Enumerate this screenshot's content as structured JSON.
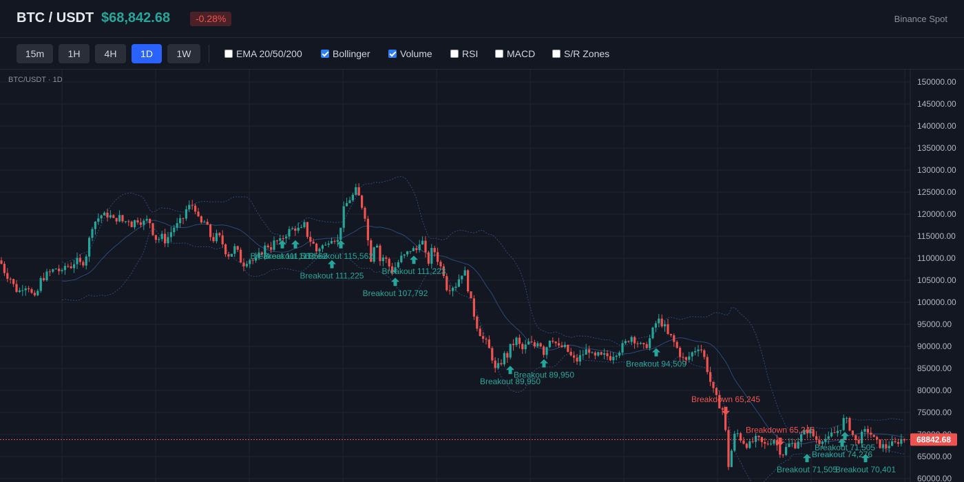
{
  "header": {
    "pair": "BTC / USDT",
    "price": "$68,842.68",
    "change": "-0.28%",
    "exchange": "Binance Spot"
  },
  "toolbar": {
    "timeframes": [
      {
        "label": "15m",
        "active": false
      },
      {
        "label": "1H",
        "active": false
      },
      {
        "label": "4H",
        "active": false
      },
      {
        "label": "1D",
        "active": true
      },
      {
        "label": "1W",
        "active": false
      }
    ],
    "indicators": [
      {
        "label": "EMA 20/50/200",
        "checked": false
      },
      {
        "label": "Bollinger",
        "checked": true
      },
      {
        "label": "Volume",
        "checked": true
      },
      {
        "label": "RSI",
        "checked": false
      },
      {
        "label": "MACD",
        "checked": false
      },
      {
        "label": "S/R Zones",
        "checked": false
      }
    ]
  },
  "chart_symbol_label": "BTC/USDT · 1D",
  "colors": {
    "up": "#26a69a",
    "down": "#ef5350",
    "background": "#131722",
    "grid": "#1f2430",
    "bollinger": "#2a4a7a",
    "last_price_line": "#ef5350"
  },
  "chart_data": {
    "type": "candlestick",
    "title": "",
    "xlabel": "",
    "ylabel": "",
    "ylim": [
      60000,
      151000
    ],
    "y_ticks": [
      "150000.00",
      "145000.00",
      "140000.00",
      "135000.00",
      "130000.00",
      "125000.00",
      "120000.00",
      "115000.00",
      "110000.00",
      "105000.00",
      "100000.00",
      "95000.00",
      "90000.00",
      "85000.00",
      "80000.00",
      "75000.00",
      "70000.00",
      "65000.00",
      "60000.00"
    ],
    "last_price": "68842.68",
    "indicators_shown": [
      "Bollinger Bands"
    ],
    "grid": true,
    "price_path": [
      [
        0,
        109500
      ],
      [
        8,
        106500
      ],
      [
        15,
        105500
      ],
      [
        22,
        103000
      ],
      [
        28,
        102500
      ],
      [
        35,
        104000
      ],
      [
        42,
        103500
      ],
      [
        48,
        101000
      ],
      [
        52,
        100500
      ],
      [
        58,
        104800
      ],
      [
        65,
        106000
      ],
      [
        75,
        107000
      ],
      [
        82,
        107800
      ],
      [
        90,
        106500
      ],
      [
        95,
        108500
      ],
      [
        102,
        108000
      ],
      [
        110,
        109500
      ],
      [
        118,
        108500
      ],
      [
        124,
        110000
      ],
      [
        128,
        113000
      ],
      [
        132,
        116000
      ],
      [
        136,
        119000
      ],
      [
        140,
        118000
      ],
      [
        145,
        120000
      ],
      [
        150,
        119500
      ],
      [
        158,
        120000
      ],
      [
        165,
        118500
      ],
      [
        172,
        119500
      ],
      [
        180,
        118000
      ],
      [
        186,
        119000
      ],
      [
        192,
        117500
      ],
      [
        198,
        119000
      ],
      [
        204,
        118500
      ],
      [
        210,
        118000
      ],
      [
        216,
        119000
      ],
      [
        222,
        116000
      ],
      [
        228,
        114000
      ],
      [
        234,
        115000
      ],
      [
        240,
        114000
      ],
      [
        245,
        115000
      ],
      [
        252,
        117000
      ],
      [
        258,
        117500
      ],
      [
        263,
        118500
      ],
      [
        268,
        119500
      ],
      [
        272,
        122000
      ],
      [
        276,
        121500
      ],
      [
        282,
        122500
      ],
      [
        287,
        119000
      ],
      [
        291,
        117500
      ],
      [
        296,
        118500
      ],
      [
        302,
        116500
      ],
      [
        308,
        114000
      ],
      [
        314,
        115000
      ],
      [
        320,
        114500
      ],
      [
        328,
        111500
      ],
      [
        334,
        110500
      ],
      [
        340,
        112500
      ],
      [
        346,
        111000
      ],
      [
        352,
        108500
      ],
      [
        358,
        109500
      ],
      [
        364,
        110000
      ],
      [
        370,
        109000
      ],
      [
        376,
        110500
      ],
      [
        382,
        112000
      ],
      [
        388,
        113000
      ],
      [
        394,
        112500
      ],
      [
        400,
        114000
      ],
      [
        406,
        113500
      ],
      [
        412,
        115000
      ],
      [
        418,
        116000
      ],
      [
        424,
        116500
      ],
      [
        430,
        117000
      ],
      [
        436,
        116000
      ],
      [
        442,
        117500
      ],
      [
        448,
        114500
      ],
      [
        454,
        113500
      ],
      [
        460,
        111500
      ],
      [
        466,
        113000
      ],
      [
        472,
        112500
      ],
      [
        478,
        114500
      ],
      [
        484,
        115000
      ],
      [
        490,
        113500
      ],
      [
        496,
        118500
      ],
      [
        500,
        121500
      ],
      [
        504,
        122500
      ],
      [
        508,
        123500
      ],
      [
        512,
        124000
      ],
      [
        516,
        125500
      ],
      [
        520,
        124500
      ],
      [
        524,
        122500
      ],
      [
        528,
        121000
      ],
      [
        532,
        118500
      ],
      [
        536,
        111000
      ],
      [
        540,
        109500
      ],
      [
        544,
        114000
      ],
      [
        548,
        113500
      ],
      [
        552,
        109500
      ],
      [
        558,
        110500
      ],
      [
        564,
        108500
      ],
      [
        570,
        107000
      ],
      [
        576,
        108500
      ],
      [
        582,
        110000
      ],
      [
        588,
        110500
      ],
      [
        594,
        111500
      ],
      [
        598,
        112500
      ],
      [
        602,
        111500
      ],
      [
        606,
        112000
      ],
      [
        610,
        114500
      ],
      [
        614,
        113500
      ],
      [
        618,
        110500
      ],
      [
        622,
        109000
      ],
      [
        626,
        111500
      ],
      [
        630,
        112000
      ],
      [
        635,
        110000
      ],
      [
        640,
        108000
      ],
      [
        645,
        106500
      ],
      [
        650,
        102500
      ],
      [
        655,
        104000
      ],
      [
        660,
        103500
      ],
      [
        664,
        104500
      ],
      [
        668,
        106000
      ],
      [
        672,
        107000
      ],
      [
        676,
        106500
      ],
      [
        680,
        103000
      ],
      [
        684,
        100000
      ],
      [
        688,
        97500
      ],
      [
        692,
        95000
      ],
      [
        696,
        93500
      ],
      [
        700,
        92000
      ],
      [
        704,
        91000
      ],
      [
        708,
        90500
      ],
      [
        712,
        88500
      ],
      [
        716,
        87000
      ],
      [
        720,
        84000
      ],
      [
        724,
        85500
      ],
      [
        728,
        86500
      ],
      [
        732,
        88000
      ],
      [
        736,
        87500
      ],
      [
        740,
        89500
      ],
      [
        745,
        90500
      ],
      [
        750,
        91500
      ],
      [
        755,
        90000
      ],
      [
        760,
        89000
      ],
      [
        765,
        90500
      ],
      [
        770,
        91000
      ],
      [
        775,
        89500
      ],
      [
        780,
        91500
      ],
      [
        785,
        90500
      ],
      [
        790,
        88500
      ],
      [
        795,
        90500
      ],
      [
        800,
        92500
      ],
      [
        806,
        91000
      ],
      [
        812,
        89500
      ],
      [
        818,
        90000
      ],
      [
        824,
        89000
      ],
      [
        830,
        87500
      ],
      [
        836,
        86500
      ],
      [
        842,
        87500
      ],
      [
        848,
        88500
      ],
      [
        855,
        89500
      ],
      [
        862,
        87000
      ],
      [
        868,
        88000
      ],
      [
        874,
        87500
      ],
      [
        880,
        88000
      ],
      [
        886,
        87500
      ],
      [
        892,
        88500
      ],
      [
        898,
        89000
      ],
      [
        904,
        90000
      ],
      [
        910,
        91000
      ],
      [
        916,
        92500
      ],
      [
        922,
        91500
      ],
      [
        928,
        90500
      ],
      [
        934,
        89500
      ],
      [
        940,
        90500
      ],
      [
        946,
        92500
      ],
      [
        950,
        94500
      ],
      [
        955,
        96000
      ],
      [
        960,
        95500
      ],
      [
        965,
        94500
      ],
      [
        970,
        92500
      ],
      [
        975,
        92000
      ],
      [
        980,
        90500
      ],
      [
        985,
        89000
      ],
      [
        990,
        87500
      ],
      [
        996,
        86500
      ],
      [
        1002,
        88000
      ],
      [
        1008,
        89000
      ],
      [
        1014,
        90000
      ],
      [
        1020,
        89000
      ],
      [
        1026,
        85500
      ],
      [
        1030,
        83000
      ],
      [
        1034,
        80500
      ],
      [
        1038,
        79000
      ],
      [
        1042,
        77500
      ],
      [
        1046,
        76500
      ],
      [
        1050,
        75500
      ],
      [
        1054,
        70000
      ],
      [
        1058,
        63000
      ],
      [
        1062,
        66000
      ],
      [
        1066,
        69500
      ],
      [
        1070,
        70500
      ],
      [
        1076,
        69000
      ],
      [
        1082,
        68000
      ],
      [
        1088,
        67500
      ],
      [
        1094,
        68500
      ],
      [
        1100,
        69000
      ],
      [
        1106,
        68000
      ],
      [
        1112,
        67500
      ],
      [
        1118,
        68500
      ],
      [
        1124,
        69000
      ],
      [
        1130,
        67000
      ],
      [
        1136,
        65500
      ],
      [
        1142,
        67000
      ],
      [
        1148,
        68000
      ],
      [
        1154,
        67500
      ],
      [
        1160,
        69000
      ],
      [
        1166,
        70000
      ],
      [
        1172,
        71000
      ],
      [
        1178,
        70500
      ],
      [
        1184,
        69000
      ],
      [
        1190,
        68500
      ],
      [
        1196,
        69500
      ],
      [
        1202,
        68500
      ],
      [
        1208,
        70000
      ],
      [
        1214,
        70500
      ],
      [
        1220,
        71500
      ],
      [
        1226,
        73500
      ],
      [
        1232,
        72500
      ],
      [
        1238,
        70000
      ],
      [
        1244,
        68000
      ],
      [
        1250,
        69500
      ],
      [
        1256,
        70500
      ],
      [
        1262,
        71000
      ],
      [
        1268,
        69000
      ],
      [
        1274,
        68000
      ],
      [
        1280,
        67500
      ],
      [
        1286,
        67000
      ],
      [
        1292,
        68000
      ],
      [
        1298,
        67500
      ],
      [
        1304,
        68500
      ],
      [
        1310,
        69000
      ],
      [
        1316,
        68842
      ]
    ],
    "signals": [
      {
        "label": "Breakout 111,562",
        "dir": "up",
        "x": 410,
        "price": 113000
      },
      {
        "label": "Breakout 111,562",
        "dir": "up",
        "x": 429,
        "price": 113000
      },
      {
        "label": "Breakout 115,562",
        "dir": "up",
        "x": 495,
        "price": 113000
      },
      {
        "label": "Breakout 111,225",
        "dir": "up",
        "x": 482,
        "price": 108500
      },
      {
        "label": "Breakout 111,223",
        "dir": "up",
        "x": 601,
        "price": 109500
      },
      {
        "label": "Breakout 107,792",
        "dir": "up",
        "x": 574,
        "price": 104500
      },
      {
        "label": "Breakout 89,950",
        "dir": "up",
        "x": 741,
        "price": 84500
      },
      {
        "label": "Breakout 89,950",
        "dir": "up",
        "x": 790,
        "price": 86000
      },
      {
        "label": "Breakout 94,509",
        "dir": "up",
        "x": 953,
        "price": 88500
      },
      {
        "label": "Breakdown 65,245",
        "dir": "down",
        "x": 1054,
        "price": 75500
      },
      {
        "label": "Breakdown 65,245",
        "dir": "down",
        "x": 1133,
        "price": 68500
      },
      {
        "label": "Breakout 71,505",
        "dir": "up",
        "x": 1172,
        "price": 64500
      },
      {
        "label": "Breakout 74,276",
        "dir": "up",
        "x": 1223,
        "price": 68000
      },
      {
        "label": "Breakout 71,505",
        "dir": "up",
        "x": 1227,
        "price": 69500
      },
      {
        "label": "Breakout 70,401",
        "dir": "up",
        "x": 1257,
        "price": 64500
      }
    ]
  }
}
